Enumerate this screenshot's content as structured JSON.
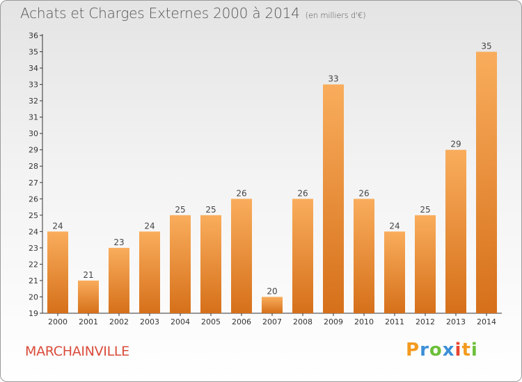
{
  "header": {
    "title": "Achats et Charges Externes 2000 à 2014",
    "subtitle": "(en milliers d'€)"
  },
  "footer": {
    "commune": "MARCHAINVILLE",
    "logo_text": "Proxiti"
  },
  "colors": {
    "bar_light": "#f7a852",
    "bar_dark": "#d8731c",
    "axis": "#333333",
    "commune_text": "#d94b3a"
  },
  "chart_data": {
    "type": "bar",
    "title": "Achats et Charges Externes 2000 à 2014",
    "subtitle": "(en milliers d'€)",
    "categories": [
      "2000",
      "2001",
      "2002",
      "2003",
      "2004",
      "2005",
      "2006",
      "2007",
      "2008",
      "2009",
      "2010",
      "2011",
      "2012",
      "2013",
      "2014"
    ],
    "values": [
      24,
      21,
      23,
      24,
      25,
      25,
      26,
      20,
      26,
      33,
      26,
      24,
      25,
      29,
      35
    ],
    "data_labels": [
      "24",
      "21",
      "23",
      "24",
      "25",
      "25",
      "26",
      "20",
      "26",
      "33",
      "26",
      "24",
      "25",
      "29",
      "35"
    ],
    "ylim": [
      19,
      36
    ],
    "yticks": [
      19,
      20,
      21,
      22,
      23,
      24,
      25,
      26,
      27,
      28,
      29,
      30,
      31,
      32,
      33,
      34,
      35,
      36
    ],
    "xlabel": "",
    "ylabel": "",
    "grid": false,
    "legend": "none"
  }
}
